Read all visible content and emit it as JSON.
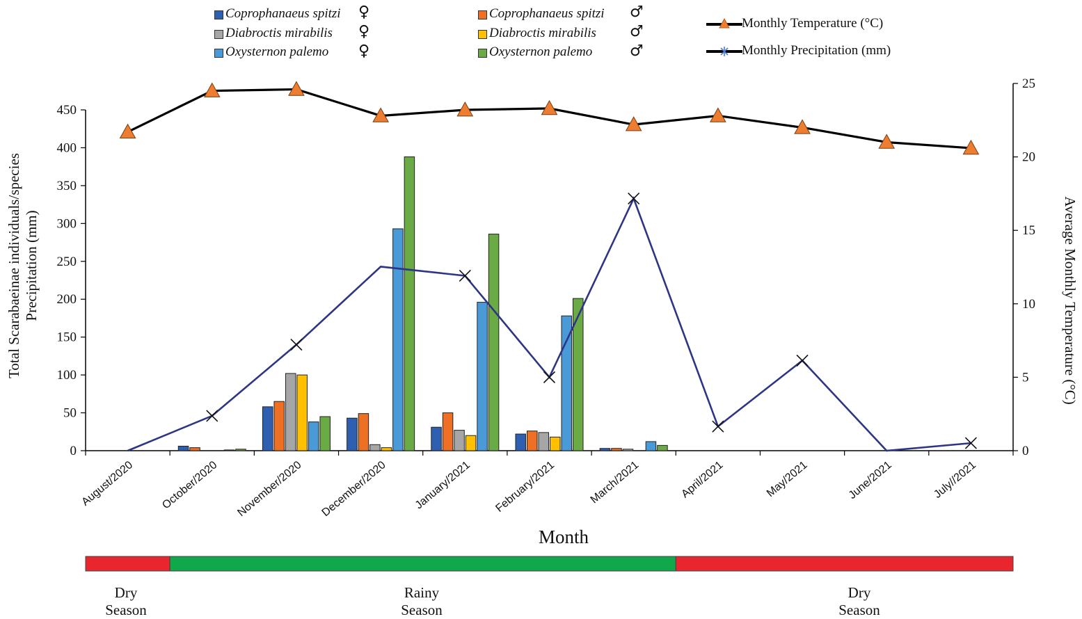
{
  "chart_data": {
    "type": "bar",
    "xlabel": "Month",
    "ylabel_lines": [
      "Total Scarabaeinae individuals/species",
      "Precipitation (mm)"
    ],
    "y2label": "Average Monthly Temperature (°C)",
    "ylim": [
      0,
      450
    ],
    "y2lim": [
      0,
      25
    ],
    "yticks": [
      0,
      50,
      100,
      150,
      200,
      250,
      300,
      350,
      400,
      450
    ],
    "y2ticks": [
      0,
      5,
      10,
      15,
      20,
      25
    ],
    "categories": [
      "August/2020",
      "October/2020",
      "November/2020",
      "December/2020",
      "January/2021",
      "February/2021",
      "March/2021",
      "April/2021",
      "May/2021",
      "June/2021",
      "July//2021"
    ],
    "series": [
      {
        "name": "Coprophanaeus spitzi",
        "sex": "♀",
        "color": "#2e5fb0",
        "type": "bar",
        "values": [
          0,
          6,
          58,
          43,
          31,
          22,
          3,
          0,
          0,
          0,
          0
        ]
      },
      {
        "name": "Coprophanaeus spitzi",
        "sex": "♂",
        "color": "#ed7024",
        "type": "bar",
        "values": [
          0,
          4,
          65,
          49,
          50,
          26,
          3,
          0,
          0,
          0,
          0
        ]
      },
      {
        "name": "Diabroctis mirabilis",
        "sex": "♀",
        "color": "#a6a6a6",
        "type": "bar",
        "values": [
          0,
          0,
          102,
          8,
          27,
          24,
          2,
          0,
          0,
          0,
          0
        ]
      },
      {
        "name": "Diabroctis mirabilis",
        "sex": "♂",
        "color": "#ffc000",
        "type": "bar",
        "values": [
          0,
          0,
          100,
          4,
          20,
          18,
          0,
          0,
          0,
          0,
          0
        ]
      },
      {
        "name": "Oxysternon palemo",
        "sex": "♀",
        "color": "#4a9ad8",
        "type": "bar",
        "values": [
          0,
          1,
          38,
          293,
          196,
          178,
          12,
          0,
          0,
          0,
          0
        ]
      },
      {
        "name": "Oxysternon palemo",
        "sex": "♂",
        "color": "#6aab45",
        "type": "bar",
        "values": [
          0,
          2,
          45,
          388,
          286,
          201,
          7,
          0,
          0,
          0,
          0
        ]
      },
      {
        "name": "Monthly Temperature (°C)",
        "type": "line",
        "axis": "right",
        "color": "#000000",
        "marker": "triangle",
        "marker_color": "#ed7d31",
        "values": [
          21.7,
          24.5,
          24.6,
          22.8,
          23.2,
          23.3,
          22.2,
          22.8,
          22.0,
          21.0,
          20.6
        ]
      },
      {
        "name": "Monthly Precipitation (mm)",
        "type": "line",
        "axis": "left",
        "color": "#2e3586",
        "marker": "star",
        "values": [
          0,
          46,
          140,
          243,
          231,
          97,
          333,
          32,
          119,
          0,
          10
        ]
      }
    ],
    "markers_on_precip": [
      false,
      true,
      true,
      false,
      true,
      true,
      true,
      true,
      true,
      false,
      true
    ]
  },
  "legend": {
    "items": [
      {
        "label": "Coprophanaeus spitzi",
        "sex": "♀",
        "color": "#2e5fb0"
      },
      {
        "label": "Coprophanaeus spitzi",
        "sex": "♂",
        "color": "#ed7024"
      },
      {
        "label": "Diabroctis mirabilis",
        "sex": "♀",
        "color": "#a6a6a6"
      },
      {
        "label": "Diabroctis mirabilis",
        "sex": "♂",
        "color": "#ffc000"
      },
      {
        "label": "Oxysternon palemo",
        "sex": "♀",
        "color": "#4a9ad8"
      },
      {
        "label": "Oxysternon palemo",
        "sex": "♂",
        "color": "#6aab45"
      }
    ],
    "temp_label": "Monthly Temperature (°C)",
    "precip_label": "Monthly Precipitation (mm)"
  },
  "seasons": [
    {
      "label_line1": "Dry",
      "label_line2": "Season",
      "color": "#e8262e",
      "from": 0,
      "to": 1
    },
    {
      "label_line1": "Rainy",
      "label_line2": "Season",
      "color": "#10a84a",
      "from": 1,
      "to": 7
    },
    {
      "label_line1": "Dry",
      "label_line2": "Season",
      "color": "#e8262e",
      "from": 7,
      "to": 11
    }
  ]
}
